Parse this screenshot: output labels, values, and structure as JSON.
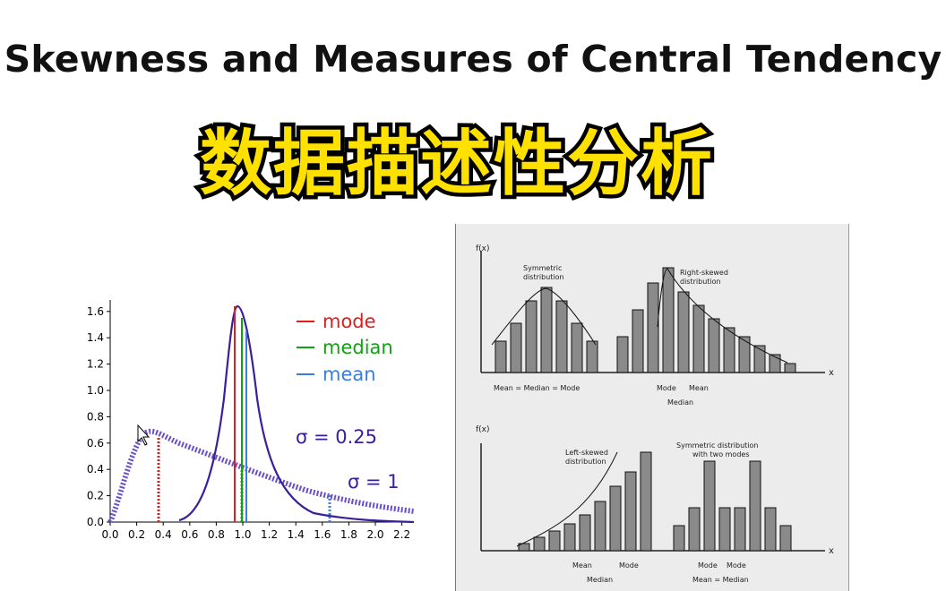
{
  "title": "Skewness and Measures of Central Tendency",
  "banner": "数据描述性分析",
  "left_chart": {
    "legend": [
      "mode",
      "median",
      "mean"
    ],
    "colors": {
      "mode": "#e11d1d",
      "median": "#14a014",
      "mean": "#3b7ddd",
      "curve": "#3a1f99"
    },
    "sigma_labels": [
      "σ = 0.25",
      "σ = 1"
    ],
    "x_ticks": [
      "0.0",
      "0.2",
      "0.4",
      "0.6",
      "0.8",
      "1.0",
      "1.2",
      "1.4",
      "1.6",
      "1.8",
      "2.0",
      "2.2"
    ],
    "y_ticks": [
      "0.0",
      "0.2",
      "0.4",
      "0.6",
      "0.8",
      "1.0",
      "1.2",
      "1.4",
      "1.6"
    ]
  },
  "right_figure": {
    "axis_label": "f(x)",
    "x_label": "x",
    "top_left_label": [
      "Symmetric",
      "distribution"
    ],
    "top_left_caption": "Mean = Median = Mode",
    "top_right_label": [
      "Right-skewed",
      "distribution"
    ],
    "top_right_caption_1": "Mode",
    "top_right_caption_2": "Mean",
    "top_right_caption_3": "Median",
    "bottom_left_label": [
      "Left-skewed",
      "distribution"
    ],
    "bottom_left_caption_1": "Mean",
    "bottom_left_caption_2": "Mode",
    "bottom_left_caption_3": "Median",
    "bottom_right_label": [
      "Symmetric distribution",
      "with two modes"
    ],
    "bottom_right_caption_1": "Mode",
    "bottom_right_caption_2": "Mode",
    "bottom_right_caption_3": "Mean = Median"
  }
}
